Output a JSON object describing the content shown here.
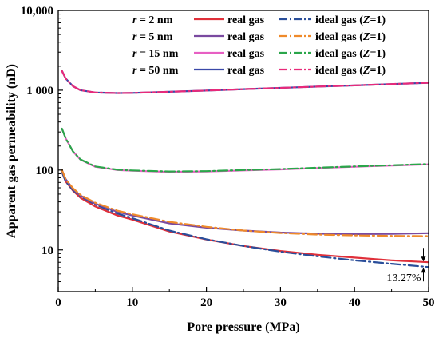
{
  "chart_data": {
    "type": "line",
    "xlabel": "Pore pressure (MPa)",
    "ylabel": "Apparent gas permeability (nD)",
    "xlim": [
      0,
      50
    ],
    "ylim": [
      3,
      10000
    ],
    "yscale": "log",
    "xticks": [
      0,
      10,
      20,
      30,
      40,
      50
    ],
    "xtick_labels": [
      "0",
      "10",
      "20",
      "30",
      "40",
      "50"
    ],
    "yticks": [
      10,
      100,
      1000,
      10000
    ],
    "ytick_labels": [
      "10",
      "100",
      "1 000",
      "10,000"
    ],
    "grid": false,
    "legend_position": "top-right",
    "legend": [
      {
        "radius": "r = 2 nm",
        "real_label": "real gas",
        "ideal_label": "ideal gas (Z=1)",
        "real_color": "#e0303a",
        "ideal_color": "#2a4e9a"
      },
      {
        "radius": "r = 5 nm",
        "real_label": "real gas",
        "ideal_label": "ideal gas (Z=1)",
        "real_color": "#7a4aa0",
        "ideal_color": "#ef8a2a"
      },
      {
        "radius": "r = 15 nm",
        "real_label": "real gas",
        "ideal_label": "ideal gas (Z=1)",
        "real_color": "#e75fc3",
        "ideal_color": "#2aa64a"
      },
      {
        "radius": "r = 50 nm",
        "real_label": "real gas",
        "ideal_label": "ideal gas (Z=1)",
        "real_color": "#3a48a8",
        "ideal_color": "#e82a7a"
      }
    ],
    "series": [
      {
        "name": "r = 2 nm real gas",
        "color": "#e0303a",
        "style": "solid",
        "x": [
          0.5,
          1,
          2,
          3,
          5,
          8,
          10,
          15,
          20,
          25,
          30,
          35,
          40,
          45,
          50
        ],
        "y": [
          95,
          72,
          55,
          45,
          35,
          27,
          24,
          17,
          13.5,
          11.2,
          9.7,
          8.7,
          8.0,
          7.4,
          7.0
        ]
      },
      {
        "name": "r = 2 nm ideal gas",
        "color": "#2a4e9a",
        "style": "dashdot",
        "x": [
          0.5,
          1,
          2,
          3,
          5,
          8,
          10,
          15,
          20,
          25,
          30,
          35,
          40,
          45,
          50
        ],
        "y": [
          95,
          72,
          56,
          47,
          37,
          28.5,
          25,
          17.5,
          13.6,
          11.2,
          9.5,
          8.3,
          7.4,
          6.7,
          6.1
        ]
      },
      {
        "name": "r = 5 nm real gas",
        "color": "#7a4aa0",
        "style": "solid",
        "x": [
          0.5,
          1,
          2,
          3,
          5,
          8,
          10,
          15,
          20,
          25,
          30,
          35,
          40,
          45,
          50
        ],
        "y": [
          100,
          77,
          58,
          48,
          38,
          30,
          27,
          21.5,
          19,
          17.5,
          16.5,
          16,
          15.8,
          15.9,
          16.2
        ]
      },
      {
        "name": "r = 5 nm ideal gas",
        "color": "#ef8a2a",
        "style": "dashdot",
        "x": [
          0.5,
          1,
          2,
          3,
          5,
          8,
          10,
          15,
          20,
          25,
          30,
          35,
          40,
          45,
          50
        ],
        "y": [
          100,
          77,
          59,
          49,
          39,
          31,
          28,
          22.5,
          19.5,
          17.5,
          16.3,
          15.6,
          15.2,
          15.0,
          14.9
        ]
      },
      {
        "name": "r = 15 nm real gas",
        "color": "#e75fc3",
        "style": "solid",
        "x": [
          0.5,
          1,
          2,
          3,
          5,
          8,
          10,
          15,
          20,
          25,
          30,
          35,
          40,
          45,
          50
        ],
        "y": [
          330,
          250,
          170,
          135,
          110,
          100,
          98,
          95,
          96,
          99,
          102,
          106,
          110,
          114,
          118
        ]
      },
      {
        "name": "r = 15 nm ideal gas",
        "color": "#2aa64a",
        "style": "dashdot",
        "x": [
          0.5,
          1,
          2,
          3,
          5,
          8,
          10,
          15,
          20,
          25,
          30,
          35,
          40,
          45,
          50
        ],
        "y": [
          330,
          250,
          170,
          136,
          111,
          101,
          99,
          96,
          97,
          100,
          103,
          107,
          111,
          115,
          119
        ]
      },
      {
        "name": "r = 50 nm real gas",
        "color": "#3a48a8",
        "style": "solid",
        "x": [
          0.5,
          1,
          2,
          3,
          5,
          8,
          10,
          15,
          20,
          25,
          30,
          35,
          40,
          45,
          50
        ],
        "y": [
          1750,
          1400,
          1120,
          1000,
          935,
          920,
          925,
          955,
          990,
          1030,
          1070,
          1110,
          1150,
          1195,
          1240
        ]
      },
      {
        "name": "r = 50 nm ideal gas",
        "color": "#e82a7a",
        "style": "dashdot",
        "x": [
          0.5,
          1,
          2,
          3,
          5,
          8,
          10,
          15,
          20,
          25,
          30,
          35,
          40,
          45,
          50
        ],
        "y": [
          1750,
          1400,
          1120,
          1000,
          935,
          920,
          925,
          955,
          990,
          1030,
          1070,
          1110,
          1150,
          1195,
          1240
        ]
      }
    ],
    "annotations": [
      {
        "text": "13.27%",
        "x": 49.3,
        "y_from": 7.0,
        "y_to": 6.1
      }
    ]
  }
}
